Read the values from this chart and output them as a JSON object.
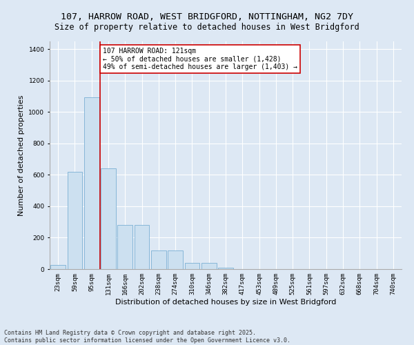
{
  "title_line1": "107, HARROW ROAD, WEST BRIDGFORD, NOTTINGHAM, NG2 7DY",
  "title_line2": "Size of property relative to detached houses in West Bridgford",
  "xlabel": "Distribution of detached houses by size in West Bridgford",
  "ylabel": "Number of detached properties",
  "categories": [
    "23sqm",
    "59sqm",
    "95sqm",
    "131sqm",
    "166sqm",
    "202sqm",
    "238sqm",
    "274sqm",
    "310sqm",
    "346sqm",
    "382sqm",
    "417sqm",
    "453sqm",
    "489sqm",
    "525sqm",
    "561sqm",
    "597sqm",
    "632sqm",
    "668sqm",
    "704sqm",
    "740sqm"
  ],
  "values": [
    25,
    620,
    1095,
    640,
    280,
    280,
    120,
    120,
    40,
    40,
    10,
    0,
    0,
    0,
    0,
    0,
    0,
    0,
    0,
    0,
    0
  ],
  "bar_color": "#cce0f0",
  "bar_edge_color": "#7aafd4",
  "vline_color": "#cc0000",
  "vline_pos": 2.52,
  "annotation_text": "107 HARROW ROAD: 121sqm\n← 50% of detached houses are smaller (1,428)\n49% of semi-detached houses are larger (1,403) →",
  "annotation_box_color": "#ffffff",
  "annotation_box_edge": "#cc0000",
  "ylim": [
    0,
    1450
  ],
  "yticks": [
    0,
    200,
    400,
    600,
    800,
    1000,
    1200,
    1400
  ],
  "background_color": "#dde8f4",
  "plot_bg_color": "#dde8f4",
  "footer_line1": "Contains HM Land Registry data © Crown copyright and database right 2025.",
  "footer_line2": "Contains public sector information licensed under the Open Government Licence v3.0.",
  "title_fontsize": 9.5,
  "subtitle_fontsize": 8.5,
  "axis_label_fontsize": 8,
  "tick_fontsize": 6.5,
  "annotation_fontsize": 7,
  "footer_fontsize": 6
}
